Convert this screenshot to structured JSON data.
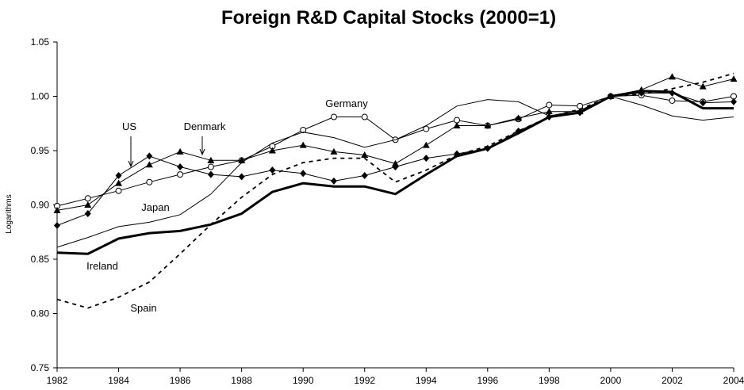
{
  "chart_data": {
    "type": "line",
    "title": "Foreign R&D Capital Stocks (2000=1)",
    "y_label": "Logarithms",
    "x": [
      1982,
      1983,
      1984,
      1985,
      1986,
      1987,
      1988,
      1989,
      1990,
      1991,
      1992,
      1993,
      1994,
      1995,
      1996,
      1997,
      1998,
      1999,
      2000,
      2001,
      2002,
      2003,
      2004
    ],
    "xlim": [
      1982,
      2004
    ],
    "xticks": [
      1982,
      1984,
      1986,
      1988,
      1990,
      1992,
      1994,
      1996,
      1998,
      2000,
      2002,
      2004
    ],
    "ylim": [
      0.75,
      1.05
    ],
    "yticks": [
      {
        "value": 0.75,
        "label": "0.75"
      },
      {
        "value": 0.8,
        "label": "0.80"
      },
      {
        "value": 0.85,
        "label": "0.85"
      },
      {
        "value": 0.9,
        "label": "0.90"
      },
      {
        "value": 0.95,
        "label": "0.95"
      },
      {
        "value": 1.0,
        "label": "1.00"
      },
      {
        "value": 1.05,
        "label": "1.05"
      }
    ],
    "grid": false,
    "series": [
      {
        "name": "Germany",
        "color": "#000000",
        "marker": "circle",
        "line_style": "solid",
        "line_width": 1,
        "values": [
          0.899,
          0.906,
          0.913,
          0.921,
          0.928,
          0.935,
          0.941,
          0.954,
          0.969,
          0.981,
          0.981,
          0.96,
          0.97,
          0.978,
          0.973,
          0.979,
          0.992,
          0.991,
          1.0,
          1.001,
          0.996,
          0.995,
          1.0
        ]
      },
      {
        "name": "US",
        "color": "#000000",
        "marker": "triangle",
        "line_style": "solid",
        "line_width": 1,
        "values": [
          0.895,
          0.9,
          0.92,
          0.937,
          0.949,
          0.941,
          0.941,
          0.95,
          0.955,
          0.949,
          0.946,
          0.938,
          0.955,
          0.973,
          0.973,
          0.98,
          0.986,
          0.986,
          1.0,
          1.006,
          1.018,
          1.009,
          1.016
        ]
      },
      {
        "name": "Denmark",
        "color": "#000000",
        "marker": "diamond",
        "line_style": "solid",
        "line_width": 1,
        "values": [
          0.881,
          0.892,
          0.927,
          0.945,
          0.935,
          0.928,
          0.926,
          0.932,
          0.929,
          0.922,
          0.927,
          0.935,
          0.943,
          0.947,
          0.952,
          0.968,
          0.981,
          0.985,
          1.0,
          1.003,
          1.003,
          0.994,
          0.995
        ]
      },
      {
        "name": "Japan",
        "color": "#000000",
        "marker": "none",
        "line_style": "solid",
        "line_width": 1,
        "values": [
          0.861,
          0.87,
          0.88,
          0.884,
          0.891,
          0.91,
          0.939,
          0.957,
          0.967,
          0.962,
          0.953,
          0.96,
          0.973,
          0.991,
          0.997,
          0.995,
          0.982,
          0.987,
          1.0,
          0.992,
          0.982,
          0.978,
          0.981
        ]
      },
      {
        "name": "Ireland",
        "color": "#000000",
        "marker": "none",
        "line_style": "solid",
        "line_width": 3,
        "values": [
          0.856,
          0.855,
          0.869,
          0.874,
          0.876,
          0.882,
          0.892,
          0.912,
          0.92,
          0.917,
          0.917,
          0.91,
          0.928,
          0.945,
          0.952,
          0.966,
          0.981,
          0.985,
          1.0,
          1.005,
          1.004,
          0.989,
          0.989
        ]
      },
      {
        "name": "Spain",
        "color": "#000000",
        "marker": "none",
        "line_style": "dashed",
        "line_width": 1.8,
        "values": [
          0.813,
          0.805,
          0.815,
          0.829,
          0.855,
          0.882,
          0.907,
          0.928,
          0.939,
          0.943,
          0.943,
          0.921,
          0.932,
          0.946,
          0.954,
          0.968,
          0.981,
          0.988,
          1.0,
          1.002,
          1.007,
          1.013,
          1.021
        ]
      }
    ]
  }
}
